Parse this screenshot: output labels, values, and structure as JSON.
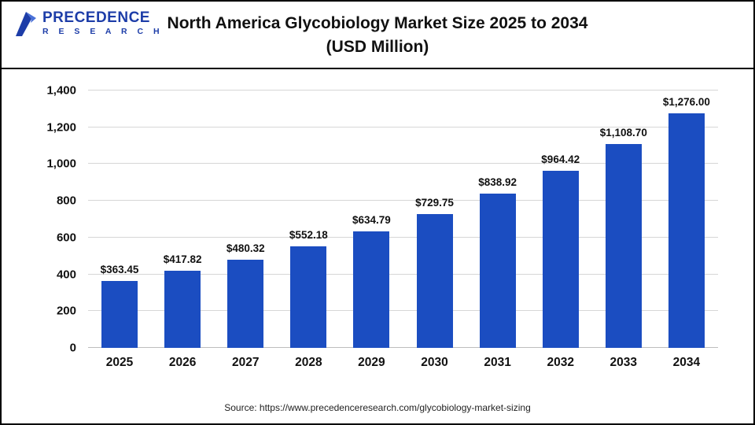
{
  "header": {
    "logo": {
      "line1": "PRECEDENCE",
      "line2": "R E S E A R C H"
    },
    "title": "North America Glycobiology Market Size 2025 to 2034",
    "subtitle": "(USD Million)"
  },
  "chart_data": {
    "type": "bar",
    "title": "North America Glycobiology Market Size 2025 to 2034 (USD Million)",
    "categories": [
      "2025",
      "2026",
      "2027",
      "2028",
      "2029",
      "2030",
      "2031",
      "2032",
      "2033",
      "2034"
    ],
    "values": [
      363.45,
      417.82,
      480.32,
      552.18,
      634.79,
      729.75,
      838.92,
      964.42,
      1108.7,
      1276.0
    ],
    "value_labels": [
      "$363.45",
      "$417.82",
      "$480.32",
      "$552.18",
      "$634.79",
      "$729.75",
      "$838.92",
      "$964.42",
      "$1,108.70",
      "$1,276.00"
    ],
    "xlabel": "",
    "ylabel": "",
    "ylim": [
      0,
      1400
    ],
    "y_ticks": [
      0,
      200,
      400,
      600,
      800,
      1000,
      1200,
      1400
    ],
    "grid": true,
    "legend_position": "none",
    "colors": {
      "bar": "#1b4dc1",
      "gridline": "#d6d6d6",
      "logo_blue": "#1d3da8"
    }
  },
  "footer": {
    "source": "Source: https://www.precedenceresearch.com/glycobiology-market-sizing"
  }
}
